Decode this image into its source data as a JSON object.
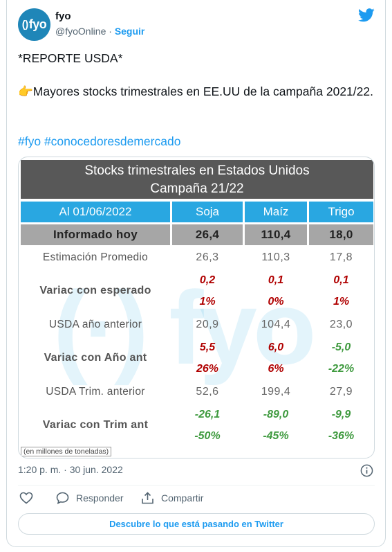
{
  "account": {
    "avatar_text": "fyo",
    "name": "fyo",
    "handle": "@fyoOnline",
    "separator": "·",
    "follow_label": "Seguir"
  },
  "tweet": {
    "line1": "*REPORTE USDA*",
    "emoji": "👉",
    "line2": "Mayores stocks trimestrales en EE.UU de la campaña 2021/22.",
    "hashtag1": "#fyo",
    "hashtag2": "#conocedoresdemercado"
  },
  "table": {
    "title1": "Stocks trimestrales en Estados Unidos",
    "title2": "Campaña 21/22",
    "headers": [
      "Al 01/06/2022",
      "Soja",
      "Maíz",
      "Trigo"
    ],
    "informado": {
      "label": "Informado hoy",
      "values": [
        "26,4",
        "110,4",
        "18,0"
      ]
    },
    "estimacion": {
      "label": "Estimación Promedio",
      "values": [
        "26,3",
        "110,3",
        "17,8"
      ]
    },
    "var_esperado": {
      "label": "Variac con esperado",
      "abs": [
        "0,2",
        "0,1",
        "0,1"
      ],
      "pct": [
        "1%",
        "0%",
        "1%"
      ]
    },
    "anio_anterior": {
      "label": "USDA año anterior",
      "values": [
        "20,9",
        "104,4",
        "23,0"
      ]
    },
    "var_anio": {
      "label": "Variac con Año ant",
      "abs": [
        "5,5",
        "6,0",
        "-5,0"
      ],
      "pct": [
        "26%",
        "6%",
        "-22%"
      ]
    },
    "trim_anterior": {
      "label": "USDA Trim. anterior",
      "values": [
        "52,6",
        "199,4",
        "27,9"
      ]
    },
    "var_trim": {
      "label": "Variac con Trim ant",
      "abs": [
        "-26,1",
        "-89,0",
        "-9,9"
      ],
      "pct": [
        "-50%",
        "-45%",
        "-36%"
      ]
    },
    "footnote": "(en millones de toneladas)",
    "watermark": "fyo"
  },
  "meta": {
    "timestamp": "1:20 p. m. · 30 jun. 2022"
  },
  "actions": {
    "reply": "Responder",
    "share": "Compartir"
  },
  "discover": "Descubre lo que está pasando en Twitter",
  "colors": {
    "twitter_blue": "#1d9bf0",
    "header_blue": "#29a7e1",
    "title_gray": "#585858",
    "positive": "#b00000",
    "negative": "#3f9a3f"
  }
}
